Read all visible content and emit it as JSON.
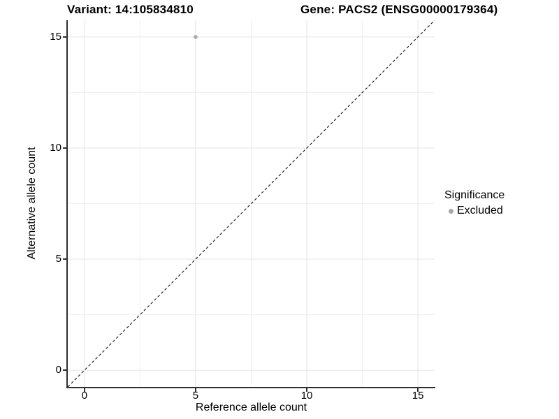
{
  "titles": {
    "variant": "Variant: 14:105834810",
    "gene": "Gene: PACS2 (ENSG00000179364)"
  },
  "chart_data": {
    "type": "scatter",
    "title": "Variant: 14:105834810 — Gene: PACS2 (ENSG00000179364)",
    "xlabel": "Reference allele count",
    "ylabel": "Alternative allele count",
    "xlim": [
      -0.75,
      15.75
    ],
    "ylim": [
      -0.75,
      15.75
    ],
    "x_ticks": [
      0,
      5,
      10,
      15
    ],
    "y_ticks": [
      0,
      5,
      10,
      15
    ],
    "x_minor_ticks": [
      2.5,
      7.5,
      12.5
    ],
    "y_minor_ticks": [
      2.5,
      7.5,
      12.5
    ],
    "grid": "major and minor, light gray, on white panel",
    "reference_line": {
      "type": "identity",
      "slope": 1,
      "intercept": 0,
      "linetype": "dashed",
      "color": "#000000"
    },
    "series": [
      {
        "name": "Excluded",
        "color": "#a8a8a8",
        "points": [
          {
            "x": 5,
            "y": 15
          }
        ]
      }
    ],
    "legend": {
      "title": "Significance",
      "position": "right",
      "items": [
        {
          "label": "Excluded",
          "color": "#a8a8a8"
        }
      ]
    },
    "colors": {
      "grid_major": "#e4e4e4",
      "grid_minor": "#f0f0f0",
      "axis": "#2f2f2f",
      "point": "#a8a8a8",
      "text": "#000000"
    }
  }
}
